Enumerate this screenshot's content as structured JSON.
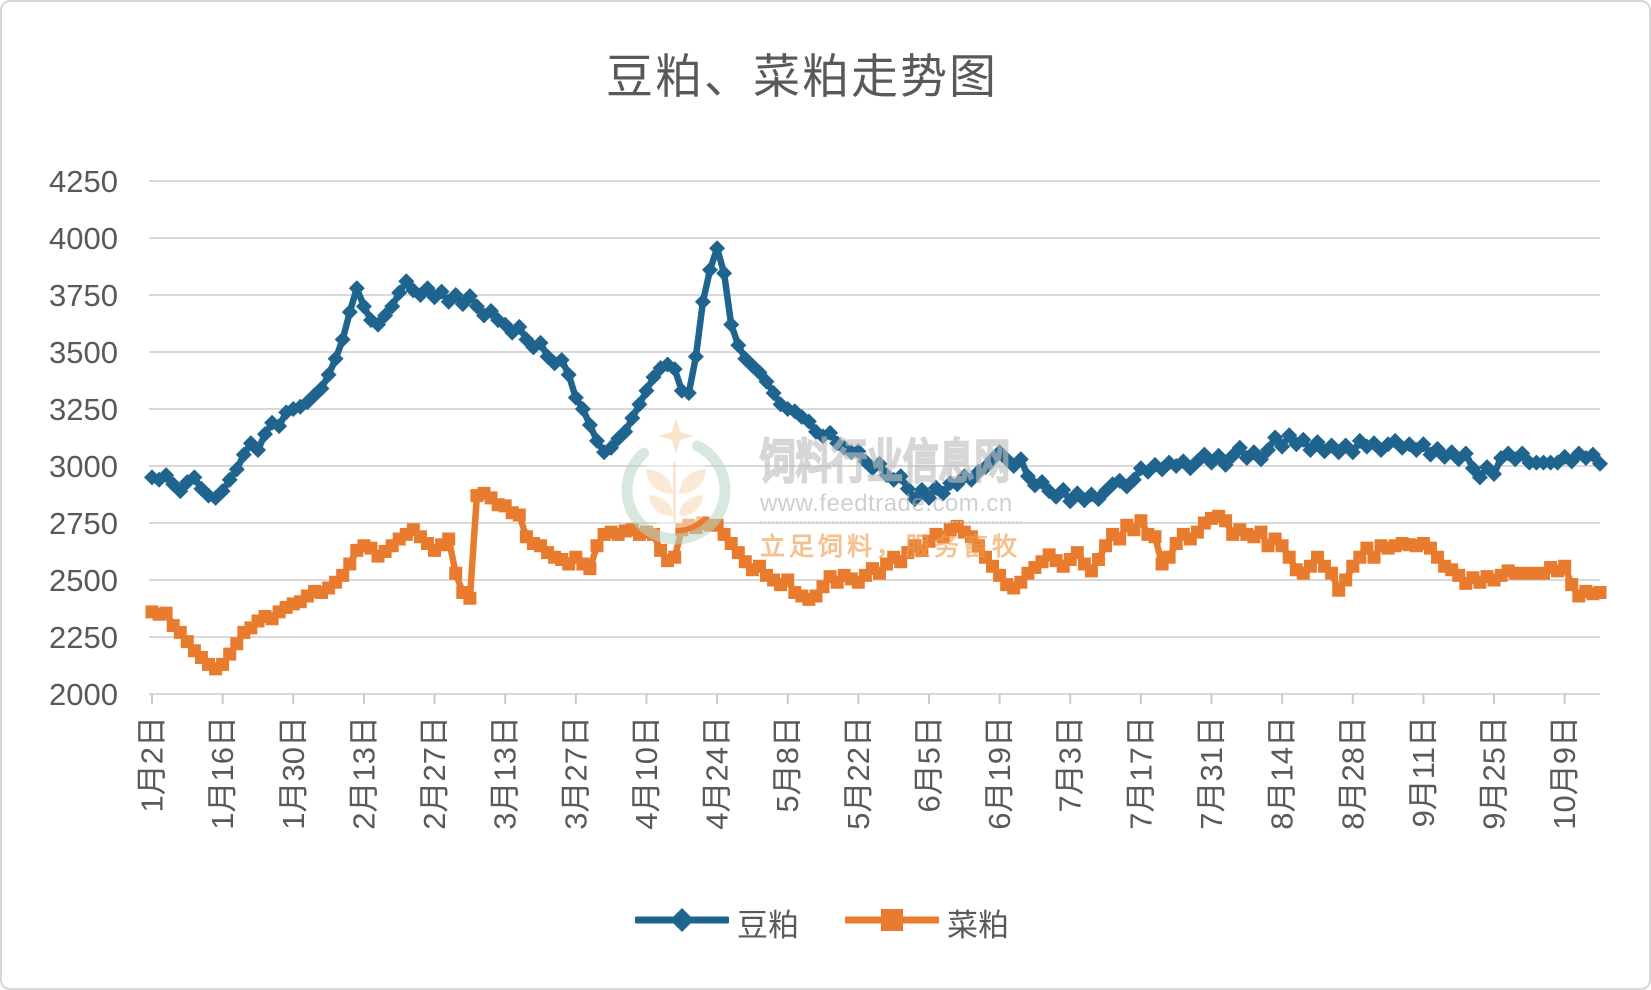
{
  "title": "豆粕、菜粕走势图",
  "watermark": {
    "site_name": "饲料行业信息网",
    "url": "www.feedtrade.com.cn",
    "slogan": "立足饲料，服务畜牧"
  },
  "colors": {
    "soybean_meal": "#1f648e",
    "rapeseed_meal": "#e87b2e",
    "gridline": "#d9d9d9",
    "tick": "#c9c9c9",
    "axis_text": "#595959"
  },
  "chart_data": {
    "type": "line",
    "title": "豆粕、菜粕走势图",
    "xlabel": "",
    "ylabel": "",
    "ylim": [
      2000,
      4250
    ],
    "yticks": [
      2000,
      2250,
      2500,
      2750,
      3000,
      3250,
      3500,
      3750,
      4000,
      4250
    ],
    "grid": true,
    "legend_position": "bottom",
    "x_tick_labels": [
      "1月2日",
      "1月16日",
      "1月30日",
      "2月13日",
      "2月27日",
      "3月13日",
      "3月27日",
      "4月10日",
      "4月24日",
      "5月8日",
      "5月22日",
      "6月5日",
      "6月19日",
      "7月3日",
      "7月17日",
      "7月31日",
      "8月14日",
      "8月28日",
      "9月11日",
      "9月25日",
      "10月9日"
    ],
    "label_every": 10,
    "series": [
      {
        "name": "豆粕",
        "color": "#1f648e",
        "marker": "diamond",
        "values": [
          2950,
          2940,
          2960,
          2920,
          2890,
          2930,
          2950,
          2900,
          2870,
          2860,
          2890,
          2940,
          2985,
          3050,
          3100,
          3070,
          3140,
          3190,
          3175,
          3235,
          3250,
          3260,
          3280,
          3310,
          3340,
          3400,
          3470,
          3555,
          3675,
          3780,
          3700,
          3640,
          3620,
          3660,
          3700,
          3760,
          3810,
          3770,
          3750,
          3780,
          3740,
          3765,
          3720,
          3750,
          3710,
          3745,
          3700,
          3660,
          3680,
          3640,
          3620,
          3585,
          3610,
          3555,
          3520,
          3540,
          3480,
          3450,
          3465,
          3400,
          3300,
          3250,
          3180,
          3110,
          3060,
          3080,
          3120,
          3150,
          3210,
          3270,
          3330,
          3390,
          3430,
          3445,
          3425,
          3330,
          3320,
          3480,
          3720,
          3860,
          3955,
          3845,
          3620,
          3530,
          3470,
          3440,
          3410,
          3370,
          3320,
          3270,
          3250,
          3240,
          3215,
          3195,
          3150,
          3130,
          3145,
          3100,
          3080,
          3060,
          3065,
          3020,
          2990,
          3010,
          2960,
          2940,
          2955,
          2900,
          2855,
          2895,
          2860,
          2905,
          2880,
          2925,
          2920,
          2955,
          2940,
          2975,
          2995,
          3030,
          3060,
          3030,
          3000,
          3030,
          2955,
          2915,
          2930,
          2890,
          2865,
          2895,
          2845,
          2880,
          2850,
          2875,
          2855,
          2890,
          2920,
          2935,
          2910,
          2940,
          2990,
          2975,
          3005,
          2985,
          3015,
          3000,
          3020,
          2990,
          3020,
          3050,
          3015,
          3045,
          3005,
          3045,
          3080,
          3035,
          3060,
          3030,
          3070,
          3125,
          3085,
          3135,
          3095,
          3115,
          3070,
          3105,
          3065,
          3090,
          3060,
          3090,
          3060,
          3110,
          3085,
          3100,
          3070,
          3095,
          3110,
          3080,
          3095,
          3070,
          3095,
          3050,
          3075,
          3040,
          3060,
          3030,
          3055,
          2990,
          2950,
          2995,
          2965,
          3035,
          3055,
          3030,
          3055,
          3015,
          3015,
          3015,
          3015,
          3015,
          3040,
          3020,
          3055,
          3035,
          3050,
          3010
        ]
      },
      {
        "name": "菜粕",
        "color": "#e87b2e",
        "marker": "square",
        "values": [
          2360,
          2350,
          2355,
          2300,
          2270,
          2230,
          2190,
          2160,
          2130,
          2110,
          2130,
          2175,
          2220,
          2270,
          2290,
          2320,
          2340,
          2330,
          2360,
          2380,
          2395,
          2405,
          2430,
          2450,
          2445,
          2465,
          2490,
          2520,
          2570,
          2630,
          2650,
          2640,
          2605,
          2625,
          2650,
          2680,
          2700,
          2720,
          2690,
          2660,
          2630,
          2655,
          2680,
          2530,
          2445,
          2420,
          2870,
          2880,
          2860,
          2830,
          2825,
          2795,
          2785,
          2690,
          2660,
          2650,
          2620,
          2600,
          2590,
          2570,
          2600,
          2570,
          2550,
          2650,
          2700,
          2710,
          2700,
          2715,
          2720,
          2700,
          2710,
          2700,
          2630,
          2585,
          2600,
          2720,
          2740,
          2730,
          2750,
          2740,
          2740,
          2700,
          2660,
          2620,
          2580,
          2545,
          2560,
          2520,
          2500,
          2480,
          2500,
          2445,
          2430,
          2415,
          2430,
          2470,
          2515,
          2490,
          2520,
          2505,
          2490,
          2520,
          2550,
          2530,
          2570,
          2600,
          2580,
          2620,
          2650,
          2630,
          2670,
          2700,
          2690,
          2720,
          2735,
          2710,
          2690,
          2650,
          2600,
          2560,
          2520,
          2480,
          2465,
          2490,
          2530,
          2555,
          2580,
          2610,
          2585,
          2560,
          2590,
          2620,
          2570,
          2540,
          2590,
          2650,
          2700,
          2680,
          2740,
          2720,
          2760,
          2700,
          2690,
          2570,
          2600,
          2660,
          2700,
          2680,
          2710,
          2750,
          2770,
          2780,
          2760,
          2700,
          2720,
          2700,
          2690,
          2710,
          2650,
          2680,
          2650,
          2600,
          2545,
          2530,
          2560,
          2600,
          2560,
          2530,
          2455,
          2500,
          2560,
          2600,
          2640,
          2600,
          2650,
          2640,
          2650,
          2660,
          2655,
          2650,
          2660,
          2640,
          2600,
          2560,
          2545,
          2520,
          2485,
          2510,
          2490,
          2515,
          2500,
          2520,
          2540,
          2530,
          2530,
          2530,
          2530,
          2530,
          2555,
          2540,
          2560,
          2480,
          2430,
          2450,
          2440,
          2445
        ]
      }
    ]
  }
}
